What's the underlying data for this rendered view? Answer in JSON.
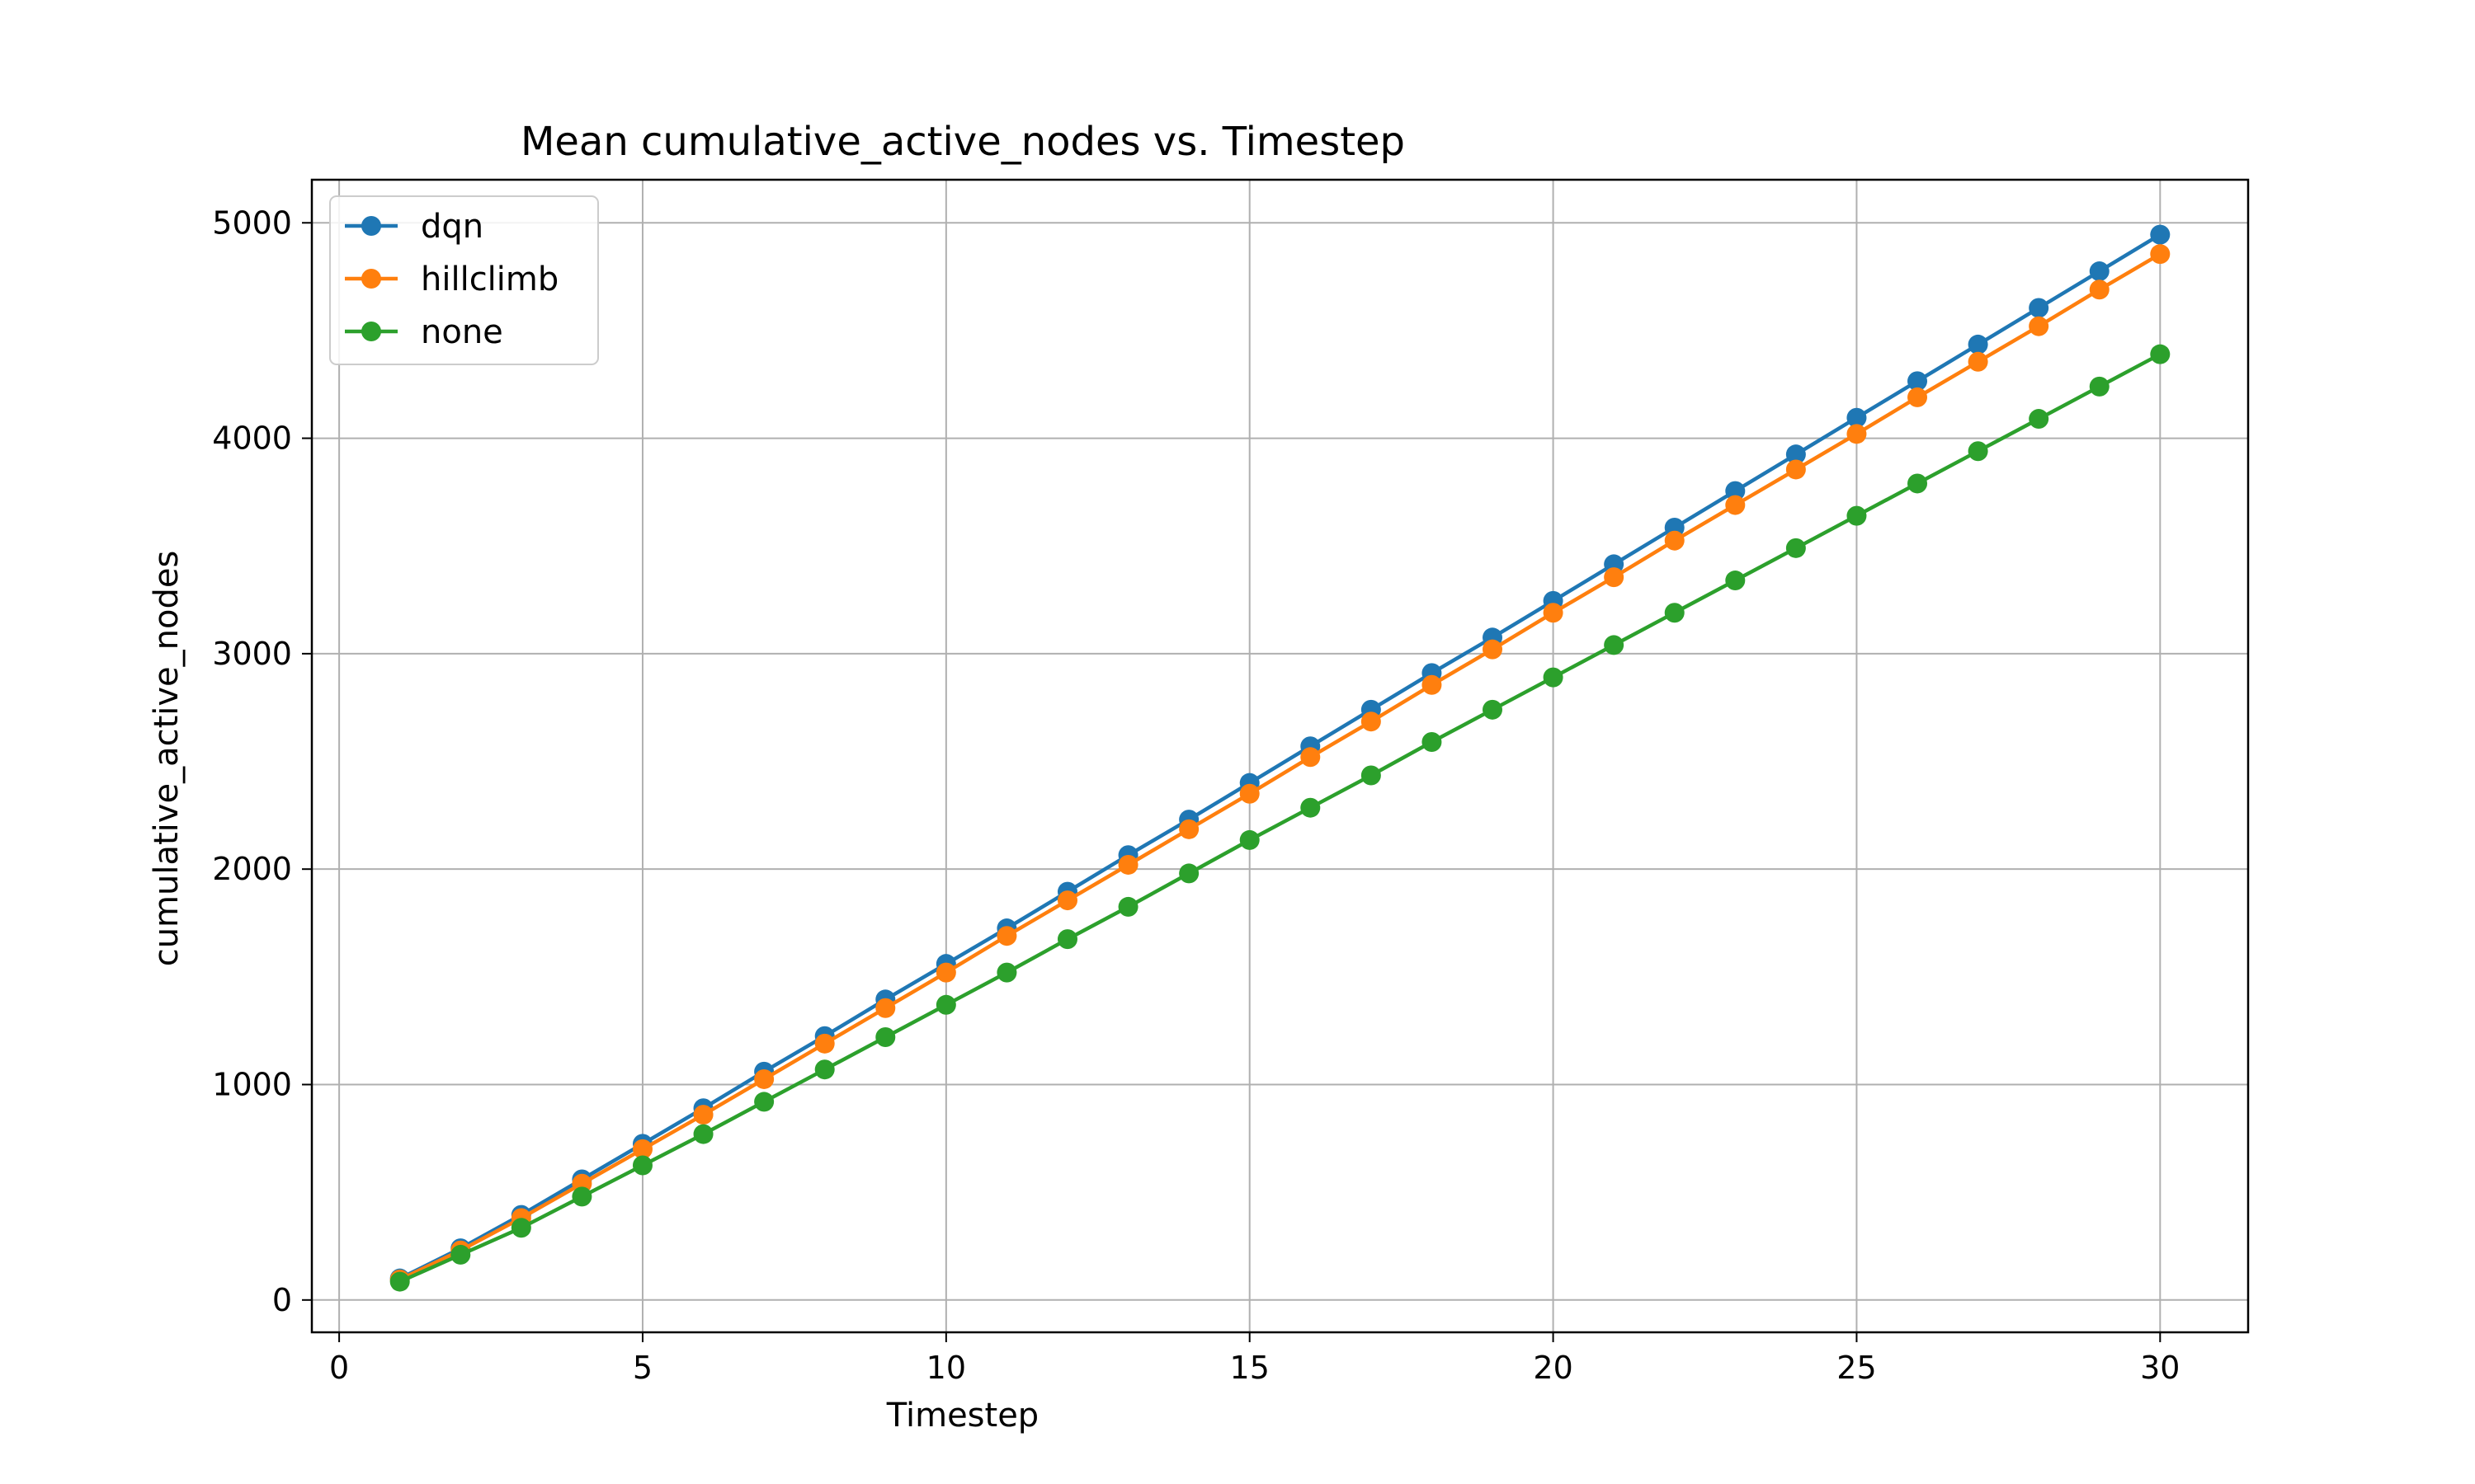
{
  "chart_data": {
    "type": "line",
    "title": "Mean cumulative_active_nodes vs. Timestep",
    "xlabel": "Timestep",
    "ylabel": "cumulative_active_nodes",
    "xlim": [
      -0.45,
      31.45
    ],
    "ylim": [
      -150,
      5200
    ],
    "xticks": [
      0,
      5,
      10,
      15,
      20,
      25,
      30
    ],
    "yticks": [
      0,
      1000,
      2000,
      3000,
      4000,
      5000
    ],
    "grid": true,
    "legend_position": "top-left",
    "marker": "circle",
    "x": [
      1,
      2,
      3,
      4,
      5,
      6,
      7,
      8,
      9,
      10,
      11,
      12,
      13,
      14,
      15,
      16,
      17,
      18,
      19,
      20,
      21,
      22,
      23,
      24,
      25,
      26,
      27,
      28,
      29,
      30
    ],
    "series": [
      {
        "name": "dqn",
        "color": "#1f77b4",
        "values": [
          100,
          240,
          395,
          560,
          725,
          890,
          1060,
          1225,
          1395,
          1560,
          1725,
          1895,
          2065,
          2230,
          2400,
          2570,
          2740,
          2910,
          3075,
          3245,
          3415,
          3585,
          3755,
          3925,
          4095,
          4265,
          4435,
          4605,
          4775,
          4945
        ]
      },
      {
        "name": "hillclimb",
        "color": "#ff7f0e",
        "values": [
          95,
          230,
          380,
          540,
          700,
          860,
          1025,
          1190,
          1355,
          1520,
          1690,
          1855,
          2020,
          2185,
          2350,
          2520,
          2685,
          2855,
          3020,
          3190,
          3355,
          3525,
          3690,
          3855,
          4020,
          4190,
          4355,
          4520,
          4690,
          4855
        ]
      },
      {
        "name": "none",
        "color": "#2ca02c",
        "values": [
          85,
          210,
          335,
          480,
          625,
          770,
          920,
          1070,
          1220,
          1370,
          1520,
          1675,
          1825,
          1980,
          2135,
          2285,
          2435,
          2590,
          2740,
          2890,
          3040,
          3190,
          3340,
          3490,
          3640,
          3790,
          3940,
          4090,
          4240,
          4390
        ]
      }
    ]
  }
}
